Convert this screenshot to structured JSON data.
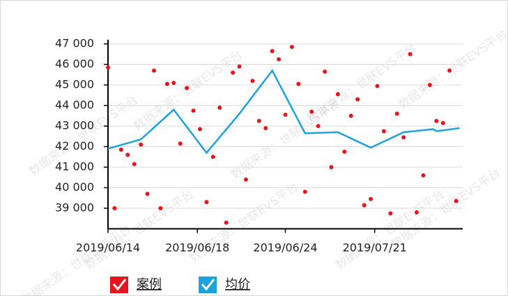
{
  "chart_data": {
    "type": "scatter-line",
    "watermark": "数据来源：世联EVS平台",
    "xlim": [
      0,
      54
    ],
    "xticks": [
      {
        "value": 0,
        "label": "2019/06/14"
      },
      {
        "value": 13.6,
        "label": "2019/06/18"
      },
      {
        "value": 27,
        "label": "2019/06/24"
      },
      {
        "value": 40.6,
        "label": "2019/07/21"
      }
    ],
    "ylim": [
      38000,
      47000
    ],
    "yticks": [
      {
        "value": 39000,
        "label": "39 000"
      },
      {
        "value": 40000,
        "label": "40 000"
      },
      {
        "value": 41000,
        "label": "41 000"
      },
      {
        "value": 42000,
        "label": "42 000"
      },
      {
        "value": 43000,
        "label": "43 000"
      },
      {
        "value": 44000,
        "label": "44 000"
      },
      {
        "value": 45000,
        "label": "45 000"
      },
      {
        "value": 46000,
        "label": "46 000"
      },
      {
        "value": 47000,
        "label": "47 000"
      }
    ],
    "grid": true,
    "series": [
      {
        "name": "案例",
        "kind": "scatter",
        "color": "#e8141b",
        "x": [
          0,
          1,
          2,
          3,
          4,
          5,
          6,
          7,
          8,
          9,
          10,
          11,
          12,
          13,
          14,
          15,
          16,
          17,
          18,
          19,
          20,
          21,
          22,
          23,
          24,
          25,
          26,
          27,
          28,
          29,
          30,
          31,
          32,
          33,
          34,
          35,
          36,
          37,
          38,
          39,
          40,
          41,
          42,
          43,
          44,
          45,
          46,
          47,
          48,
          49,
          50,
          51,
          52,
          53
        ],
        "values": [
          45850,
          39000,
          41850,
          41600,
          41150,
          42100,
          39700,
          45700,
          39000,
          45050,
          45100,
          42150,
          44850,
          43750,
          42850,
          39300,
          41500,
          43900,
          38300,
          45600,
          45900,
          40400,
          45200,
          43250,
          42900,
          46650,
          46250,
          43550,
          46850,
          45050,
          39800,
          43700,
          43000,
          45650,
          41000,
          44550,
          41750,
          43500,
          44300,
          39150,
          39450,
          44950,
          42750,
          38750,
          43600,
          42450,
          46500,
          38800,
          40600,
          45000,
          43250,
          43150,
          45700,
          39350
        ]
      },
      {
        "name": "均价",
        "kind": "line",
        "color": "#1aa3dc",
        "x": [
          0,
          5,
          10,
          15,
          20,
          25,
          30,
          35,
          40,
          45,
          49.5,
          50,
          53.5
        ],
        "values": [
          41900,
          42350,
          43800,
          41700,
          43600,
          45700,
          42650,
          42700,
          41950,
          42700,
          42850,
          42750,
          42900
        ]
      }
    ]
  }
}
